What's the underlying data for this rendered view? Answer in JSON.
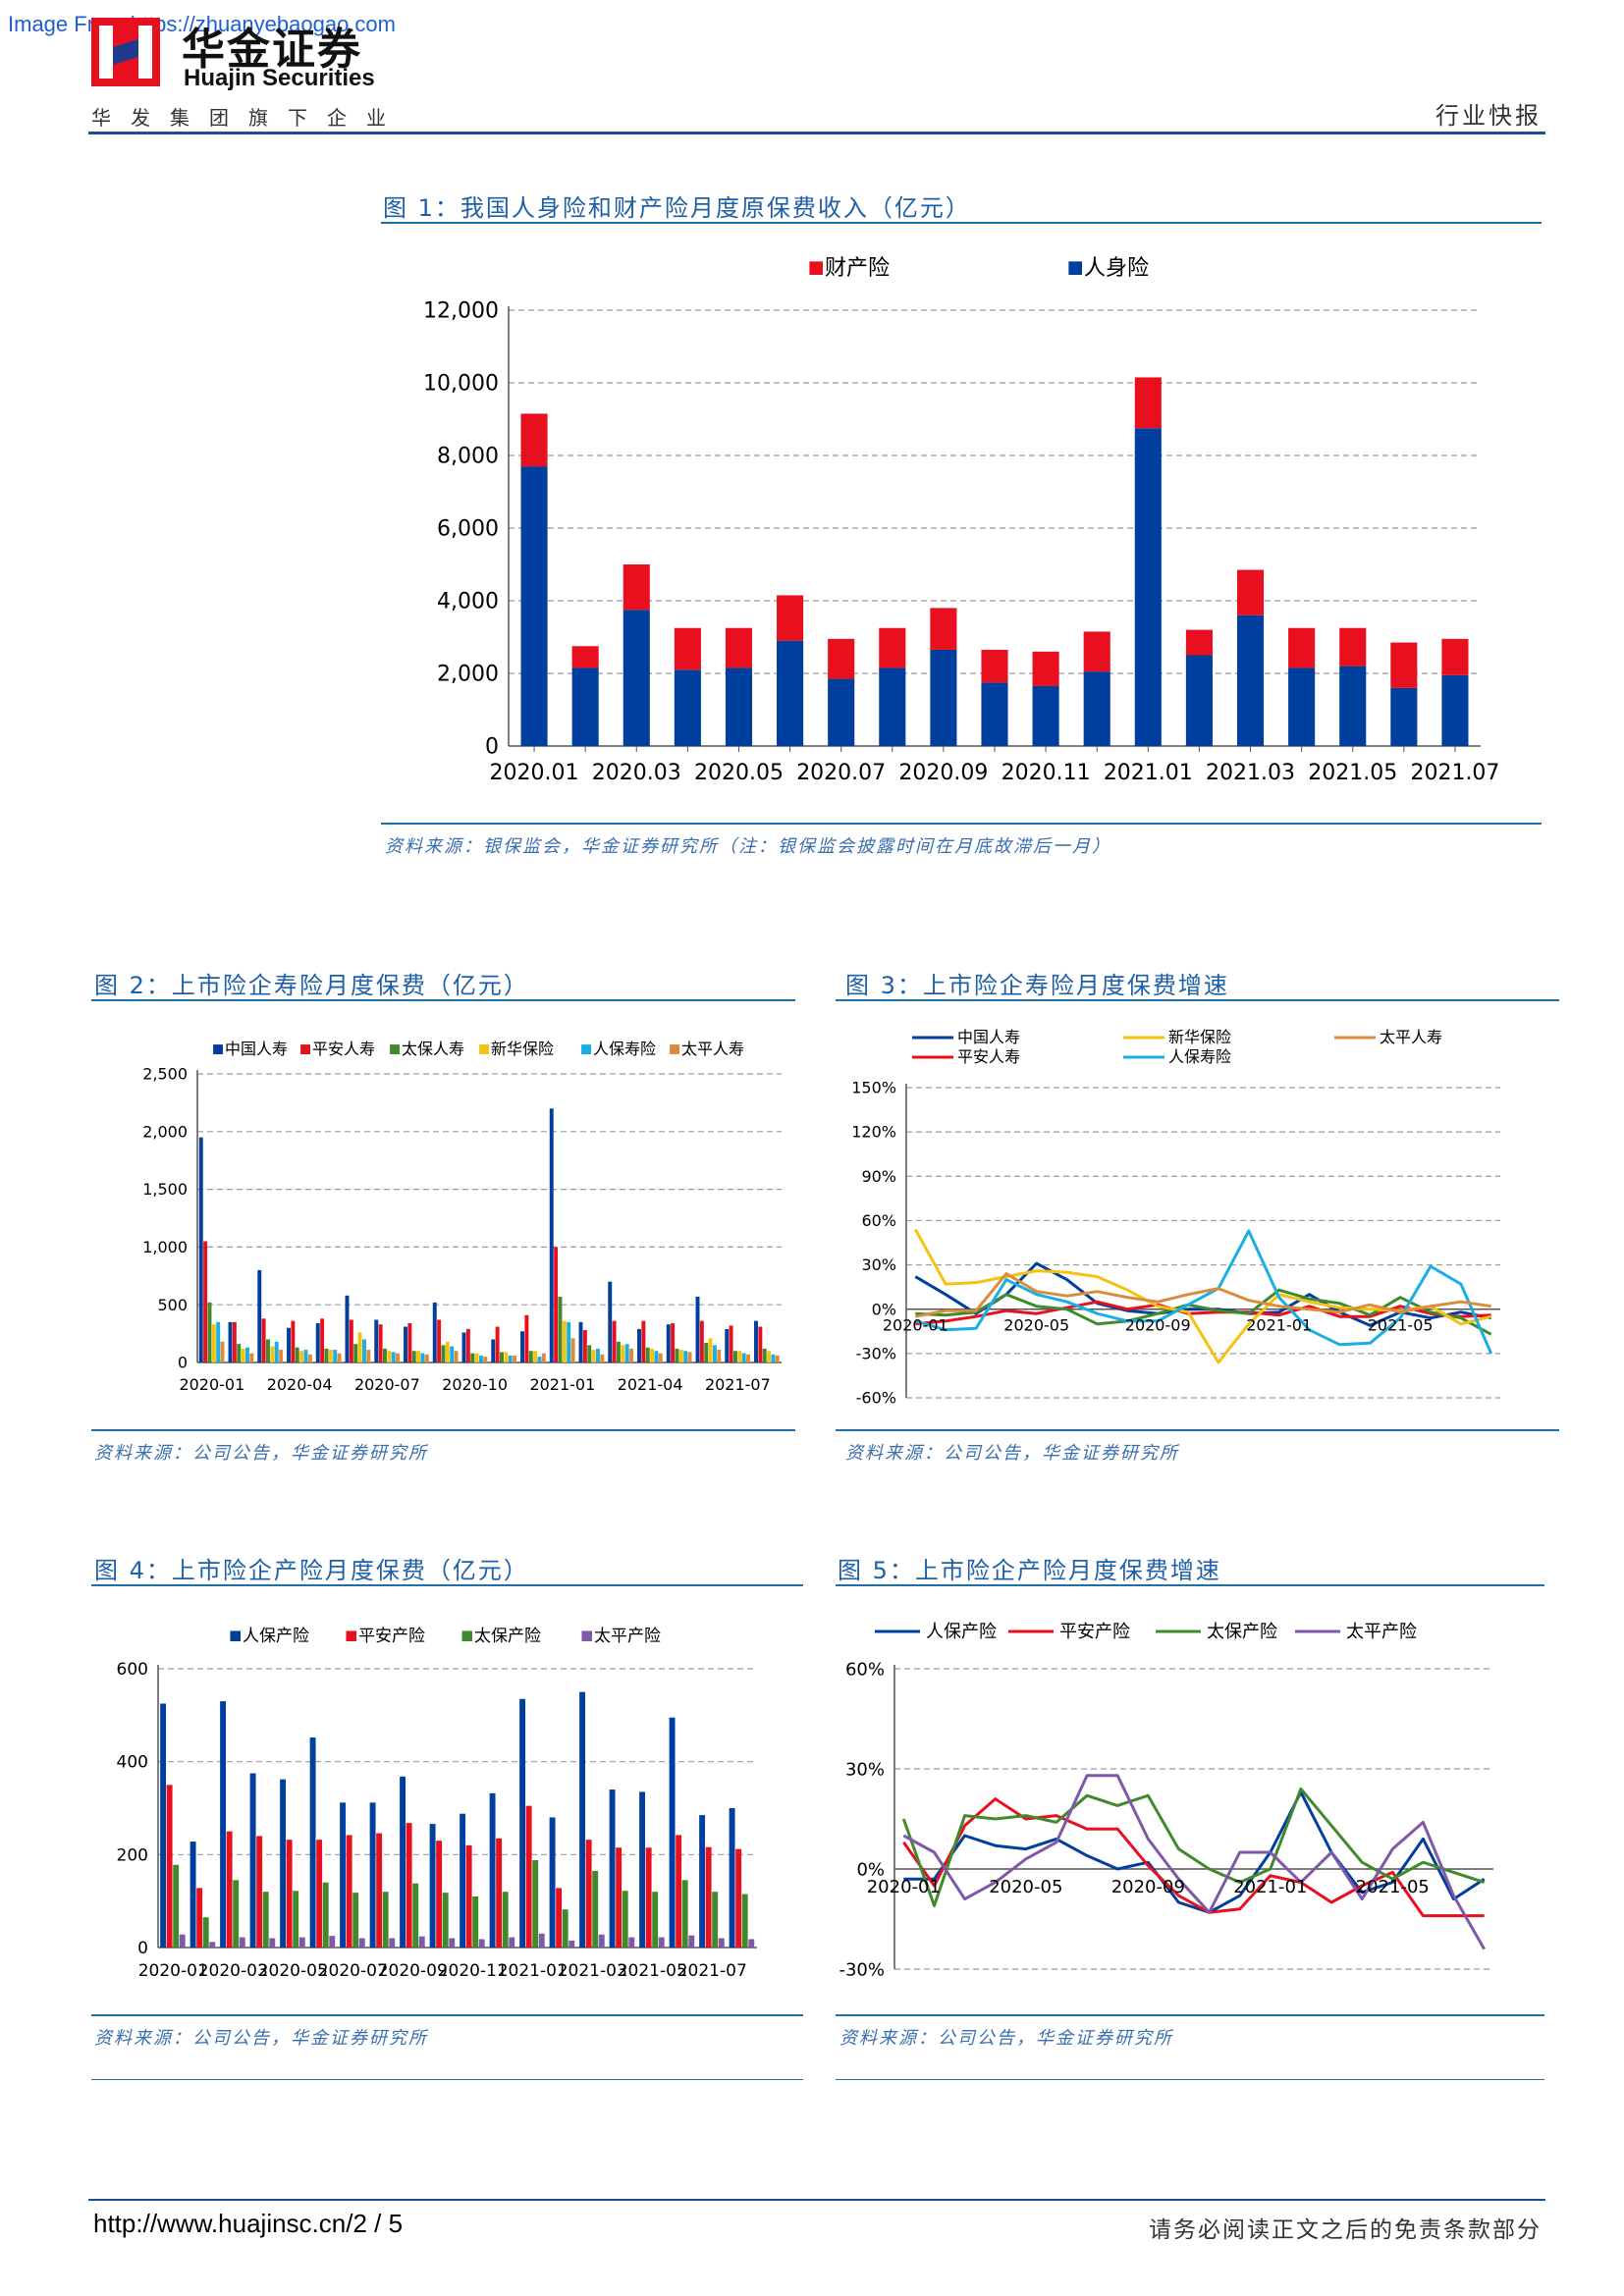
{
  "header": {
    "watermark": "Image From https://zhuanyebaogao.com",
    "logo_cn": "华金证券",
    "logo_en": "Huajin Securities",
    "logo_sub": "华发集团旗下企业",
    "report_type": "行业快报"
  },
  "footer": {
    "url": "http://www.huajinsc.cn/2 / 5",
    "disclaimer": "请务必阅读正文之后的免责条款部分"
  },
  "colors": {
    "blue": "#003f9e",
    "red": "#e8101e",
    "green": "#3f8a2c",
    "yellow": "#f5c211",
    "cyan": "#1aaee5",
    "orange": "#d98c3c",
    "purple": "#7f58a8",
    "title_blue": "#1f5fa6"
  },
  "figures": {
    "fig1": {
      "title": "图 1：我国人身险和财产险月度原保费收入（亿元）",
      "source": "资料来源：银保监会，华金证券研究所（注：银保监会披露时间在月底故滞后一月）"
    },
    "fig2": {
      "title": "图 2：上市险企寿险月度保费（亿元）",
      "source": "资料来源：公司公告，华金证券研究所"
    },
    "fig3": {
      "title": "图 3：上市险企寿险月度保费增速",
      "source": "资料来源：公司公告，华金证券研究所"
    },
    "fig4": {
      "title": "图 4：上市险企产险月度保费（亿元）",
      "source": "资料来源：公司公告，华金证券研究所"
    },
    "fig5": {
      "title": "图 5：上市险企产险月度保费增速",
      "source": "资料来源：公司公告，华金证券研究所"
    }
  },
  "chart_data": [
    {
      "id": "fig1",
      "type": "bar",
      "stacked": true,
      "categories": [
        "2020.01",
        "2020.02",
        "2020.03",
        "2020.04",
        "2020.05",
        "2020.06",
        "2020.07",
        "2020.08",
        "2020.09",
        "2020.10",
        "2020.11",
        "2020.12",
        "2021.01",
        "2021.02",
        "2021.03",
        "2021.04",
        "2021.05",
        "2021.06",
        "2021.07"
      ],
      "tick_labels": [
        "2020.01",
        "2020.03",
        "2020.05",
        "2020.07",
        "2020.09",
        "2020.11",
        "2021.01",
        "2021.03",
        "2021.05",
        "2021.07"
      ],
      "series": [
        {
          "name": "人身险",
          "color": "#003f9e",
          "values": [
            7700,
            2150,
            3750,
            2100,
            2150,
            2900,
            1850,
            2150,
            2650,
            1750,
            1650,
            2050,
            8750,
            2500,
            3600,
            2150,
            2200,
            1600,
            1950
          ]
        },
        {
          "name": "财产险",
          "color": "#e8101e",
          "values": [
            1450,
            600,
            1250,
            1150,
            1100,
            1250,
            1100,
            1100,
            1150,
            900,
            950,
            1100,
            1400,
            700,
            1250,
            1100,
            1050,
            1250,
            1000
          ]
        }
      ],
      "legend": [
        "财产险",
        "人身险"
      ],
      "yticks": [
        "0",
        "2,000",
        "4,000",
        "6,000",
        "8,000",
        "10,000",
        "12,000"
      ],
      "ylim": [
        0,
        12000
      ],
      "grid": true,
      "legend_position": "top"
    },
    {
      "id": "fig2",
      "type": "bar",
      "categories": [
        "2020-01",
        "2020-02",
        "2020-03",
        "2020-04",
        "2020-05",
        "2020-06",
        "2020-07",
        "2020-08",
        "2020-09",
        "2020-10",
        "2020-11",
        "2020-12",
        "2021-01",
        "2021-02",
        "2021-03",
        "2021-04",
        "2021-05",
        "2021-06",
        "2021-07",
        "2021-08"
      ],
      "tick_labels": [
        "2020-01",
        "2020-04",
        "2020-07",
        "2020-10",
        "2021-01",
        "2021-04",
        "2021-07"
      ],
      "series": [
        {
          "name": "中国人寿",
          "color": "#003f9e",
          "values": [
            1950,
            350,
            800,
            300,
            340,
            580,
            370,
            310,
            520,
            260,
            200,
            270,
            2200,
            350,
            700,
            290,
            330,
            570,
            290,
            360
          ]
        },
        {
          "name": "平安人寿",
          "color": "#e8101e",
          "values": [
            1050,
            350,
            380,
            360,
            380,
            370,
            330,
            340,
            370,
            290,
            310,
            410,
            1000,
            280,
            360,
            360,
            340,
            360,
            320,
            310
          ]
        },
        {
          "name": "太保人寿",
          "color": "#3f8a2c",
          "values": [
            520,
            160,
            200,
            130,
            120,
            160,
            120,
            100,
            150,
            80,
            90,
            100,
            570,
            150,
            180,
            130,
            120,
            170,
            100,
            120
          ]
        },
        {
          "name": "新华保险",
          "color": "#f5c211",
          "values": [
            330,
            120,
            140,
            100,
            110,
            260,
            100,
            100,
            180,
            80,
            90,
            100,
            360,
            110,
            150,
            120,
            110,
            210,
            100,
            100
          ]
        },
        {
          "name": "人保寿险",
          "color": "#1aaee5",
          "values": [
            350,
            130,
            180,
            110,
            110,
            200,
            90,
            80,
            140,
            60,
            60,
            50,
            350,
            120,
            160,
            100,
            100,
            150,
            80,
            70
          ]
        },
        {
          "name": "太平人寿",
          "color": "#d98c3c",
          "values": [
            180,
            80,
            110,
            70,
            80,
            110,
            80,
            70,
            100,
            50,
            60,
            80,
            210,
            70,
            120,
            80,
            90,
            110,
            70,
            60
          ]
        }
      ],
      "yticks": [
        "0",
        "500",
        "1,000",
        "1,500",
        "2,000",
        "2,500"
      ],
      "ylim": [
        0,
        2500
      ],
      "grid": true,
      "legend_position": "top"
    },
    {
      "id": "fig3",
      "type": "line",
      "categories": [
        "2020-01",
        "2020-02",
        "2020-03",
        "2020-04",
        "2020-05",
        "2020-06",
        "2020-07",
        "2020-08",
        "2020-09",
        "2020-10",
        "2020-11",
        "2020-12",
        "2021-01",
        "2021-02",
        "2021-03",
        "2021-04",
        "2021-05",
        "2021-06",
        "2021-07",
        "2021-08"
      ],
      "tick_labels": [
        "2020-01",
        "2020-05",
        "2020-09",
        "2021-01",
        "2021-05"
      ],
      "series": [
        {
          "name": "中国人寿",
          "color": "#003f9e",
          "values": [
            22,
            10,
            -3,
            10,
            31,
            20,
            4,
            -1,
            -3,
            0,
            0,
            -3,
            -2,
            10,
            -2,
            -11,
            -2,
            -6,
            -2,
            -6
          ]
        },
        {
          "name": "平安人寿",
          "color": "#e8101e",
          "values": [
            -10,
            -8,
            -5,
            -1,
            -3,
            1,
            5,
            0,
            3,
            -3,
            -2,
            -2,
            -4,
            2,
            -5,
            -5,
            2,
            -3,
            -5,
            -4
          ]
        },
        {
          "name": "太保人寿",
          "color": "#3f8a2c",
          "values": [
            -3,
            -4,
            -2,
            10,
            2,
            0,
            -10,
            -8,
            -3,
            3,
            -1,
            -3,
            13,
            7,
            4,
            -4,
            8,
            -2,
            -6,
            -17
          ]
        },
        {
          "name": "新华保险",
          "color": "#f5c211",
          "values": [
            54,
            17,
            18,
            22,
            26,
            25,
            22,
            13,
            2,
            -2,
            -36,
            -10,
            10,
            5,
            1,
            0,
            -1,
            2,
            -10,
            -5
          ]
        },
        {
          "name": "人保寿险",
          "color": "#1aaee5",
          "values": [
            -8,
            -14,
            -13,
            20,
            10,
            5,
            -3,
            -8,
            -8,
            3,
            14,
            53,
            8,
            -14,
            -24,
            -23,
            -6,
            29,
            17,
            -30
          ]
        },
        {
          "name": "太平人寿",
          "color": "#d98c3c",
          "values": [
            -5,
            -1,
            -1,
            24,
            12,
            9,
            12,
            8,
            5,
            10,
            14,
            6,
            2,
            0,
            -2,
            3,
            -2,
            2,
            5,
            2
          ]
        }
      ],
      "yticks": [
        "150%",
        "120%",
        "90%",
        "60%",
        "30%",
        "0%",
        "-30%",
        "-60%"
      ],
      "ylim": [
        -60,
        150
      ],
      "grid": true,
      "legend_position": "top"
    },
    {
      "id": "fig4",
      "type": "bar",
      "categories": [
        "2020-01",
        "2020-02",
        "2020-03",
        "2020-04",
        "2020-05",
        "2020-06",
        "2020-07",
        "2020-08",
        "2020-09",
        "2020-10",
        "2020-11",
        "2020-12",
        "2021-01",
        "2021-02",
        "2021-03",
        "2021-04",
        "2021-05",
        "2021-06",
        "2021-07",
        "2021-08"
      ],
      "tick_labels": [
        "2020-01",
        "2020-03",
        "2020-05",
        "2020-07",
        "2020-09",
        "2020-11",
        "2021-01",
        "2021-03",
        "2021-05",
        "2021-07"
      ],
      "series": [
        {
          "name": "人保产险",
          "color": "#003f9e",
          "values": [
            525,
            228,
            530,
            375,
            362,
            452,
            312,
            312,
            368,
            266,
            288,
            332,
            535,
            280,
            550,
            340,
            335,
            495,
            285,
            300
          ]
        },
        {
          "name": "平安产险",
          "color": "#e8101e",
          "values": [
            350,
            128,
            250,
            240,
            232,
            232,
            242,
            246,
            268,
            230,
            220,
            235,
            305,
            128,
            232,
            215,
            215,
            242,
            216,
            212
          ]
        },
        {
          "name": "太保产险",
          "color": "#3f8a2c",
          "values": [
            178,
            65,
            145,
            120,
            122,
            140,
            118,
            120,
            138,
            118,
            110,
            120,
            188,
            82,
            165,
            122,
            120,
            145,
            120,
            115
          ]
        },
        {
          "name": "太平产险",
          "color": "#7f58a8",
          "values": [
            28,
            12,
            22,
            20,
            22,
            25,
            20,
            20,
            24,
            20,
            18,
            22,
            30,
            15,
            28,
            22,
            22,
            26,
            20,
            18
          ]
        }
      ],
      "yticks": [
        "0",
        "200",
        "400",
        "600"
      ],
      "ylim": [
        0,
        600
      ],
      "grid": true,
      "legend_position": "top"
    },
    {
      "id": "fig5",
      "type": "line",
      "categories": [
        "2020-01",
        "2020-02",
        "2020-03",
        "2020-04",
        "2020-05",
        "2020-06",
        "2020-07",
        "2020-08",
        "2020-09",
        "2020-10",
        "2020-11",
        "2020-12",
        "2021-01",
        "2021-02",
        "2021-03",
        "2021-04",
        "2021-05",
        "2021-06",
        "2021-07",
        "2021-08"
      ],
      "tick_labels": [
        "2020-01",
        "2020-05",
        "2020-09",
        "2021-01",
        "2021-05"
      ],
      "series": [
        {
          "name": "人保产险",
          "color": "#003f9e",
          "values": [
            -3,
            -3,
            10,
            7,
            6,
            9,
            4,
            0,
            2,
            -10,
            -13,
            -8,
            5,
            23,
            5,
            -7,
            -4,
            9,
            -9,
            -3
          ]
        },
        {
          "name": "平安产险",
          "color": "#e8101e",
          "values": [
            8,
            -5,
            13,
            21,
            15,
            16,
            12,
            12,
            1,
            -8,
            -13,
            -12,
            -2,
            -4,
            -10,
            -5,
            -1,
            -14,
            -14,
            -14
          ]
        },
        {
          "name": "太保产险",
          "color": "#3f8a2c",
          "values": [
            15,
            -11,
            16,
            15,
            16,
            14,
            22,
            19,
            22,
            6,
            0,
            -4,
            0,
            24,
            13,
            2,
            -3,
            2,
            -1,
            -4
          ]
        },
        {
          "name": "太平产险",
          "color": "#7f58a8",
          "values": [
            10,
            5,
            -9,
            -4,
            3,
            8,
            28,
            28,
            9,
            -3,
            -13,
            5,
            5,
            -4,
            5,
            -9,
            6,
            14,
            -8,
            -24
          ]
        }
      ],
      "yticks": [
        "60%",
        "30%",
        "0%",
        "-30%"
      ],
      "ylim": [
        -30,
        60
      ],
      "grid": true,
      "legend_position": "top"
    }
  ]
}
